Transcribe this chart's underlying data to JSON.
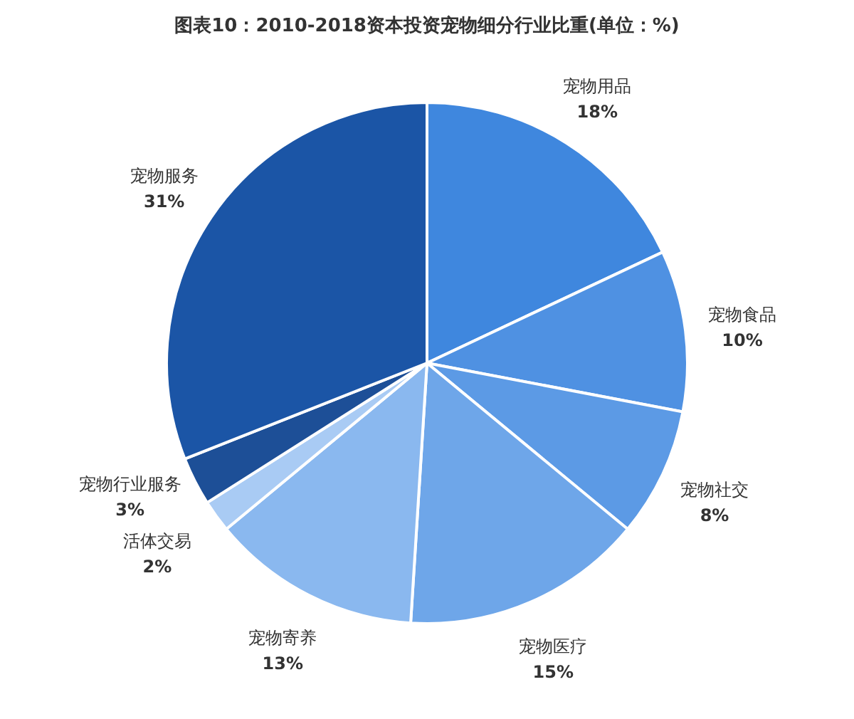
{
  "chart_data": {
    "type": "pie",
    "title": "图表10：2010-2018资本投资宠物细分行业比重(单位：%)",
    "categories": [
      "宠物用品",
      "宠物食品",
      "宠物社交",
      "宠物医疗",
      "宠物寄养",
      "活体交易",
      "宠物行业服务",
      "宠物服务"
    ],
    "values": [
      18,
      10,
      8,
      15,
      13,
      2,
      3,
      31
    ],
    "value_labels": [
      "18%",
      "10%",
      "8%",
      "15%",
      "13%",
      "2%",
      "3%",
      "31%"
    ],
    "colors": [
      "#3f87de",
      "#4f91e2",
      "#5c9ae5",
      "#6ea6e9",
      "#8ab8ef",
      "#a9cbf4",
      "#1d4f97",
      "#1b55a6"
    ]
  }
}
